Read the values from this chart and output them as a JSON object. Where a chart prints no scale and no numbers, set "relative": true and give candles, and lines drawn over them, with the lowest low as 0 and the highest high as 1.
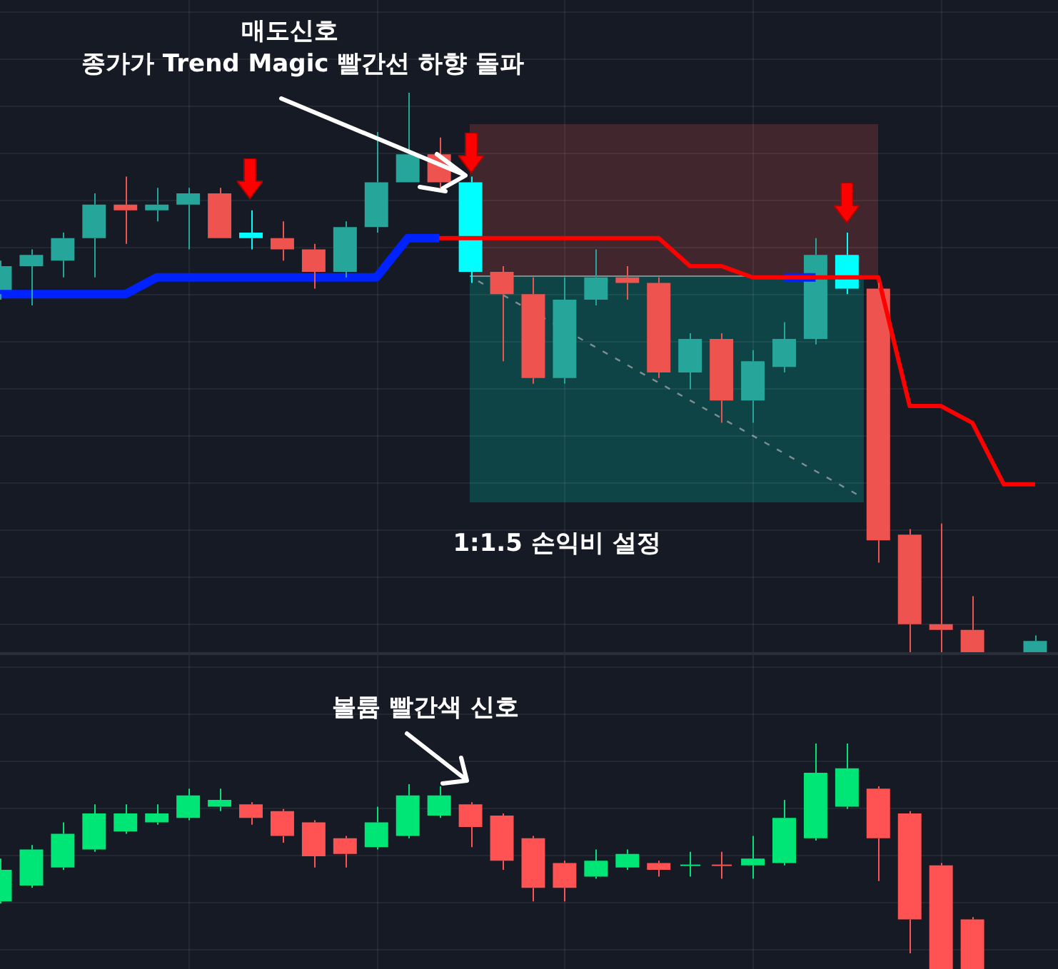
{
  "chart_data": [
    {
      "type": "candlestick",
      "relative": true,
      "grid": true,
      "legend": false,
      "tick_labels": false,
      "annotations": [
        "매도신호",
        "종가가 Trend Magic 빨간선 하향 돌파",
        "1:1.5 손익비 설정"
      ],
      "categories": [
        null,
        null,
        null,
        null,
        null,
        null,
        null,
        null,
        null,
        null,
        null,
        null,
        null,
        null,
        null,
        null,
        null,
        null,
        null,
        null,
        null,
        null,
        null,
        null,
        null,
        null,
        null,
        null,
        null,
        null,
        null,
        null,
        null,
        null
      ],
      "ohlc": [
        [
          0.64,
          0.7,
          0.63,
          0.69
        ],
        [
          0.69,
          0.72,
          0.62,
          0.71
        ],
        [
          0.7,
          0.75,
          0.67,
          0.74
        ],
        [
          0.74,
          0.82,
          0.67,
          0.8
        ],
        [
          0.8,
          0.85,
          0.73,
          0.79
        ],
        [
          0.79,
          0.83,
          0.77,
          0.8
        ],
        [
          0.8,
          0.83,
          0.72,
          0.82
        ],
        [
          0.82,
          0.83,
          0.74,
          0.74
        ],
        [
          0.75,
          0.79,
          0.72,
          0.74
        ],
        [
          0.74,
          0.77,
          0.7,
          0.72
        ],
        [
          0.72,
          0.73,
          0.65,
          0.68
        ],
        [
          0.68,
          0.77,
          0.67,
          0.76
        ],
        [
          0.76,
          0.93,
          0.75,
          0.84
        ],
        [
          0.84,
          1.0,
          0.84,
          0.89
        ],
        [
          0.89,
          0.92,
          0.83,
          0.84
        ],
        [
          0.84,
          0.85,
          0.66,
          0.68
        ],
        [
          0.68,
          0.69,
          0.52,
          0.64
        ],
        [
          0.64,
          0.67,
          0.48,
          0.49
        ],
        [
          0.49,
          0.67,
          0.48,
          0.63
        ],
        [
          0.63,
          0.72,
          0.62,
          0.67
        ],
        [
          0.67,
          0.69,
          0.63,
          0.66
        ],
        [
          0.66,
          0.67,
          0.49,
          0.5
        ],
        [
          0.5,
          0.57,
          0.47,
          0.56
        ],
        [
          0.56,
          0.57,
          0.41,
          0.45
        ],
        [
          0.45,
          0.54,
          0.41,
          0.52
        ],
        [
          0.51,
          0.59,
          0.5,
          0.56
        ],
        [
          0.56,
          0.74,
          0.55,
          0.71
        ],
        [
          0.71,
          0.75,
          0.64,
          0.65
        ],
        [
          0.65,
          0.66,
          0.16,
          0.2
        ],
        [
          0.21,
          0.22,
          0,
          0.05
        ],
        [
          0.05,
          0.23,
          0,
          0.04
        ],
        [
          0.04,
          0.1,
          0,
          0
        ],
        null,
        [
          0,
          0.03,
          0,
          0.02
        ]
      ],
      "colors": [
        "#26a69a",
        "#26a69a",
        "#26a69a",
        "#26a69a",
        "#ef5350",
        "#26a69a",
        "#26a69a",
        "#ef5350",
        "#00ffff",
        "#ef5350",
        "#ef5350",
        "#26a69a",
        "#26a69a",
        "#26a69a",
        "#ef5350",
        "#00ffff",
        "#ef5350",
        "#ef5350",
        "#26a69a",
        "#26a69a",
        "#ef5350",
        "#ef5350",
        "#26a69a",
        "#ef5350",
        "#26a69a",
        "#26a69a",
        "#26a69a",
        "#00ffff",
        "#ef5350",
        "#ef5350",
        "#ef5350",
        "#ef5350",
        "#ef5350",
        "#26a69a"
      ],
      "series": [
        {
          "type": "line",
          "color": "#ff0000",
          "values": [
            null,
            null,
            null,
            null,
            null,
            null,
            null,
            null,
            null,
            null,
            null,
            null,
            null,
            null,
            0.74,
            0.74,
            0.74,
            0.74,
            0.74,
            0.74,
            0.74,
            0.74,
            0.69,
            0.69,
            0.67,
            0.67,
            0.67,
            0.67,
            0.67,
            0.44,
            0.44,
            0.41,
            0.3,
            0.3
          ]
        },
        {
          "type": "line",
          "color": "#0022ff",
          "values": [
            0.64,
            0.64,
            0.64,
            0.64,
            0.64,
            0.67,
            0.67,
            0.67,
            0.67,
            0.67,
            0.67,
            0.67,
            0.67,
            0.74,
            0.74,
            null,
            null,
            null,
            null,
            null,
            null,
            null,
            null,
            null,
            null,
            0.67,
            0.67,
            null,
            null,
            null,
            null,
            null,
            null,
            null
          ]
        }
      ]
    },
    {
      "type": "candlestick",
      "relative": true,
      "grid": true,
      "legend": false,
      "tick_labels": false,
      "annotations": [
        "볼륨 빨간색 신호"
      ],
      "categories": [
        null,
        null,
        null,
        null,
        null,
        null,
        null,
        null,
        null,
        null,
        null,
        null,
        null,
        null,
        null,
        null,
        null,
        null,
        null,
        null,
        null,
        null,
        null,
        null,
        null,
        null,
        null,
        null,
        null,
        null,
        null,
        null,
        null,
        null
      ],
      "ohlc": [
        [
          0.3,
          0.49,
          0.29,
          0.44
        ],
        [
          0.37,
          0.55,
          0.36,
          0.53
        ],
        [
          0.45,
          0.65,
          0.44,
          0.6
        ],
        [
          0.53,
          0.73,
          0.52,
          0.69
        ],
        [
          0.61,
          0.73,
          0.6,
          0.69
        ],
        [
          0.65,
          0.73,
          0.64,
          0.69
        ],
        [
          0.67,
          0.8,
          0.66,
          0.77
        ],
        [
          0.72,
          0.8,
          0.7,
          0.75
        ],
        [
          0.73,
          0.74,
          0.64,
          0.67
        ],
        [
          0.7,
          0.71,
          0.56,
          0.59
        ],
        [
          0.65,
          0.66,
          0.45,
          0.5
        ],
        [
          0.58,
          0.59,
          0.45,
          0.51
        ],
        [
          0.54,
          0.72,
          0.53,
          0.65
        ],
        [
          0.59,
          0.82,
          0.58,
          0.77
        ],
        [
          0.68,
          0.81,
          0.67,
          0.77
        ],
        [
          0.73,
          0.74,
          0.54,
          0.63
        ],
        [
          0.68,
          0.69,
          0.44,
          0.48
        ],
        [
          0.58,
          0.59,
          0.3,
          0.36
        ],
        [
          0.47,
          0.48,
          0.3,
          0.36
        ],
        [
          0.41,
          0.53,
          0.4,
          0.48
        ],
        [
          0.45,
          0.53,
          0.44,
          0.51
        ],
        [
          0.47,
          0.48,
          0.41,
          0.44
        ],
        [
          0.46,
          0.52,
          0.41,
          0.46
        ],
        [
          0.46,
          0.52,
          0.4,
          0.46
        ],
        [
          0.46,
          0.59,
          0.4,
          0.49
        ],
        [
          0.47,
          0.75,
          0.46,
          0.67
        ],
        [
          0.58,
          1.0,
          0.57,
          0.87
        ],
        [
          0.72,
          1.0,
          0.71,
          0.89
        ],
        [
          0.8,
          0.81,
          0.39,
          0.58
        ],
        [
          0.69,
          0.7,
          0.07,
          0.22
        ],
        [
          0.46,
          0.47,
          0,
          0
        ],
        [
          0.22,
          0.23,
          0,
          0
        ],
        null,
        null
      ],
      "colors": [
        "#00e676",
        "#00e676",
        "#00e676",
        "#00e676",
        "#00e676",
        "#00e676",
        "#00e676",
        "#00e676",
        "#ff5252",
        "#ff5252",
        "#ff5252",
        "#ff5252",
        "#00e676",
        "#00e676",
        "#00e676",
        "#ff5252",
        "#ff5252",
        "#ff5252",
        "#ff5252",
        "#00e676",
        "#00e676",
        "#ff5252",
        "#00e676",
        "#ff5252",
        "#00e676",
        "#00e676",
        "#00e676",
        "#00e676",
        "#ff5252",
        "#ff5252",
        "#ff5252",
        "#ff5252",
        "#ff5252",
        "#ff5252"
      ]
    }
  ]
}
